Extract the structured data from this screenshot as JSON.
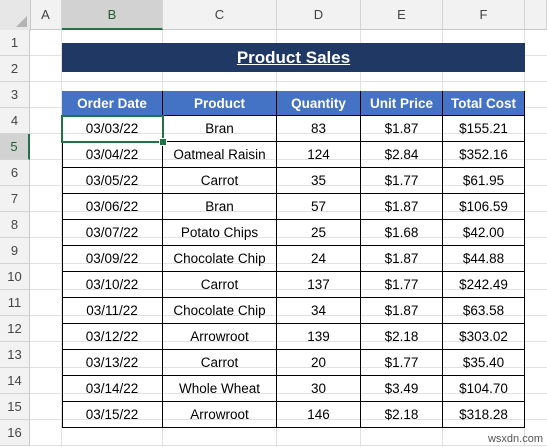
{
  "columns": [
    "A",
    "B",
    "C",
    "D",
    "E",
    "F"
  ],
  "rows": [
    "1",
    "2",
    "3",
    "4",
    "5",
    "6",
    "7",
    "8",
    "9",
    "10",
    "11",
    "12",
    "13",
    "14",
    "15",
    "16"
  ],
  "title": "Product Sales",
  "table": {
    "headers": [
      "Order Date",
      "Product",
      "Quantity",
      "Unit Price",
      "Total Cost"
    ],
    "rows": [
      [
        "03/03/22",
        "Bran",
        "83",
        "$1.87",
        "$155.21"
      ],
      [
        "03/04/22",
        "Oatmeal Raisin",
        "124",
        "$2.84",
        "$352.16"
      ],
      [
        "03/05/22",
        "Carrot",
        "35",
        "$1.77",
        "$61.95"
      ],
      [
        "03/06/22",
        "Bran",
        "57",
        "$1.87",
        "$106.59"
      ],
      [
        "03/07/22",
        "Potato Chips",
        "25",
        "$1.68",
        "$42.00"
      ],
      [
        "03/09/22",
        "Chocolate Chip",
        "24",
        "$1.87",
        "$44.88"
      ],
      [
        "03/10/22",
        "Carrot",
        "137",
        "$1.77",
        "$242.49"
      ],
      [
        "03/11/22",
        "Chocolate Chip",
        "34",
        "$1.87",
        "$63.58"
      ],
      [
        "03/12/22",
        "Arrowroot",
        "139",
        "$2.18",
        "$303.02"
      ],
      [
        "03/13/22",
        "Carrot",
        "20",
        "$1.77",
        "$35.40"
      ],
      [
        "03/14/22",
        "Whole Wheat",
        "30",
        "$3.49",
        "$104.70"
      ],
      [
        "03/15/22",
        "Arrowroot",
        "146",
        "$2.18",
        "$318.28"
      ]
    ]
  },
  "selection": {
    "column": "B",
    "row": "5"
  },
  "watermark": "wsxdn.com"
}
